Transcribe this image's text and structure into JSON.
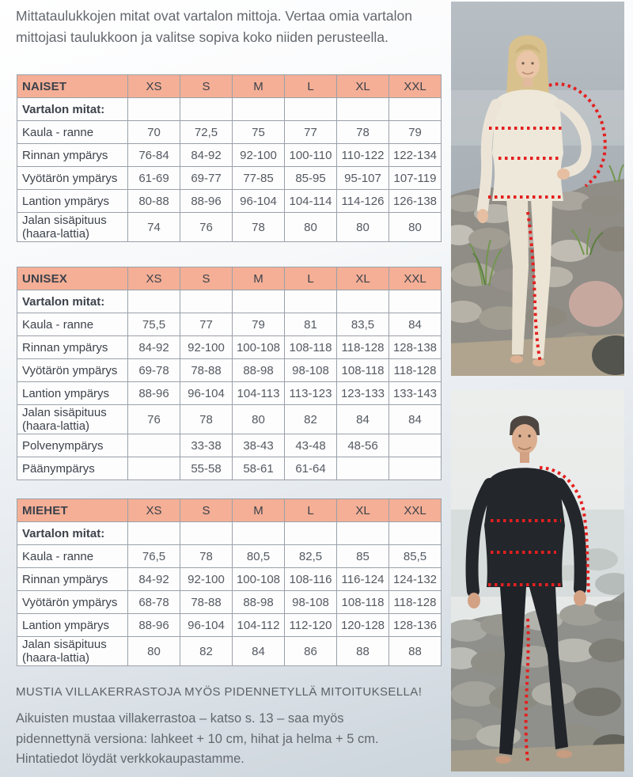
{
  "intro": {
    "lines": [
      "Mittataulukkojen mitat ovat vartalon mittoja. Vertaa omia vartalon",
      "mittojasi taulukkoon ja valitse sopiva koko niiden perusteella."
    ]
  },
  "tables": [
    {
      "title": "NAISET",
      "sizes": [
        "XS",
        "S",
        "M",
        "L",
        "XL",
        "XXL"
      ],
      "section_label": "Vartalon mitat:",
      "rows": [
        {
          "label": "Kaula - ranne",
          "values": [
            "70",
            "72,5",
            "75",
            "77",
            "78",
            "79"
          ]
        },
        {
          "label": "Rinnan ympärys",
          "values": [
            "76-84",
            "84-92",
            "92-100",
            "100-110",
            "110-122",
            "122-134"
          ]
        },
        {
          "label": "Vyötärön ympärys",
          "values": [
            "61-69",
            "69-77",
            "77-85",
            "85-95",
            "95-107",
            "107-119"
          ]
        },
        {
          "label": "Lantion ympärys",
          "values": [
            "80-88",
            "88-96",
            "96-104",
            "104-114",
            "114-126",
            "126-138"
          ]
        },
        {
          "label": "Jalan sisäpituus (haara-lattia)",
          "values": [
            "74",
            "76",
            "78",
            "80",
            "80",
            "80"
          ]
        }
      ]
    },
    {
      "title": "UNISEX",
      "sizes": [
        "XS",
        "S",
        "M",
        "L",
        "XL",
        "XXL"
      ],
      "section_label": "Vartalon mitat:",
      "rows": [
        {
          "label": "Kaula - ranne",
          "values": [
            "75,5",
            "77",
            "79",
            "81",
            "83,5",
            "84"
          ]
        },
        {
          "label": "Rinnan ympärys",
          "values": [
            "84-92",
            "92-100",
            "100-108",
            "108-118",
            "118-128",
            "128-138"
          ]
        },
        {
          "label": "Vyötärön ympärys",
          "values": [
            "69-78",
            "78-88",
            "88-98",
            "98-108",
            "108-118",
            "118-128"
          ]
        },
        {
          "label": "Lantion ympärys",
          "values": [
            "88-96",
            "96-104",
            "104-113",
            "113-123",
            "123-133",
            "133-143"
          ]
        },
        {
          "label": "Jalan sisäpituus (haara-lattia)",
          "values": [
            "76",
            "78",
            "80",
            "82",
            "84",
            "84"
          ]
        },
        {
          "label": "Polvenympärys",
          "values": [
            "",
            "33-38",
            "38-43",
            "43-48",
            "48-56",
            ""
          ]
        },
        {
          "label": "Päänympärys",
          "values": [
            "",
            "55-58",
            "58-61",
            "61-64",
            "",
            ""
          ]
        }
      ]
    },
    {
      "title": "MIEHET",
      "sizes": [
        "XS",
        "S",
        "M",
        "L",
        "XL",
        "XXL"
      ],
      "section_label": "Vartalon mitat:",
      "rows": [
        {
          "label": "Kaula - ranne",
          "values": [
            "76,5",
            "78",
            "80,5",
            "82,5",
            "85",
            "85,5"
          ]
        },
        {
          "label": "Rinnan ympärys",
          "values": [
            "84-92",
            "92-100",
            "100-108",
            "108-116",
            "116-124",
            "124-132"
          ]
        },
        {
          "label": "Vyötärön ympärys",
          "values": [
            "68-78",
            "78-88",
            "88-98",
            "98-108",
            "108-118",
            "118-128"
          ]
        },
        {
          "label": "Lantion ympärys",
          "values": [
            "88-96",
            "96-104",
            "104-112",
            "112-120",
            "120-128",
            "128-136"
          ]
        },
        {
          "label": "Jalan sisäpituus (haara-lattia)",
          "values": [
            "80",
            "82",
            "84",
            "86",
            "88",
            "88"
          ]
        }
      ]
    }
  ],
  "footer": {
    "headline": "MUSTIA VILLAKERRASTOJA MYÖS PIDENNETYLLÄ MITOITUKSELLA!",
    "lines": [
      "Aikuisten mustaa villakerrastoa – katso s. 13 – saa myös",
      "pidennettynä versiona: lahkeet + 10 cm, hihat ja helma + 5 cm.",
      "Hintatiedot löydät verkkokaupastamme."
    ]
  },
  "photos": {
    "top": {
      "name": "woman-white-base-layer-photo",
      "subject": "nainen valkoisessa kerrastossa rantakivikolla, punaiset mittaviivat"
    },
    "bottom": {
      "name": "man-black-base-layer-photo",
      "subject": "mies mustassa kerrastossa rantakivikolla, punaiset mittaviivat"
    }
  },
  "colors": {
    "table_header_bg": "#f4af96",
    "table_border": "#9aa1a9",
    "measurement_line_red": "#e3201f",
    "text_dark": "#3d424b",
    "text_body": "#63686e"
  }
}
